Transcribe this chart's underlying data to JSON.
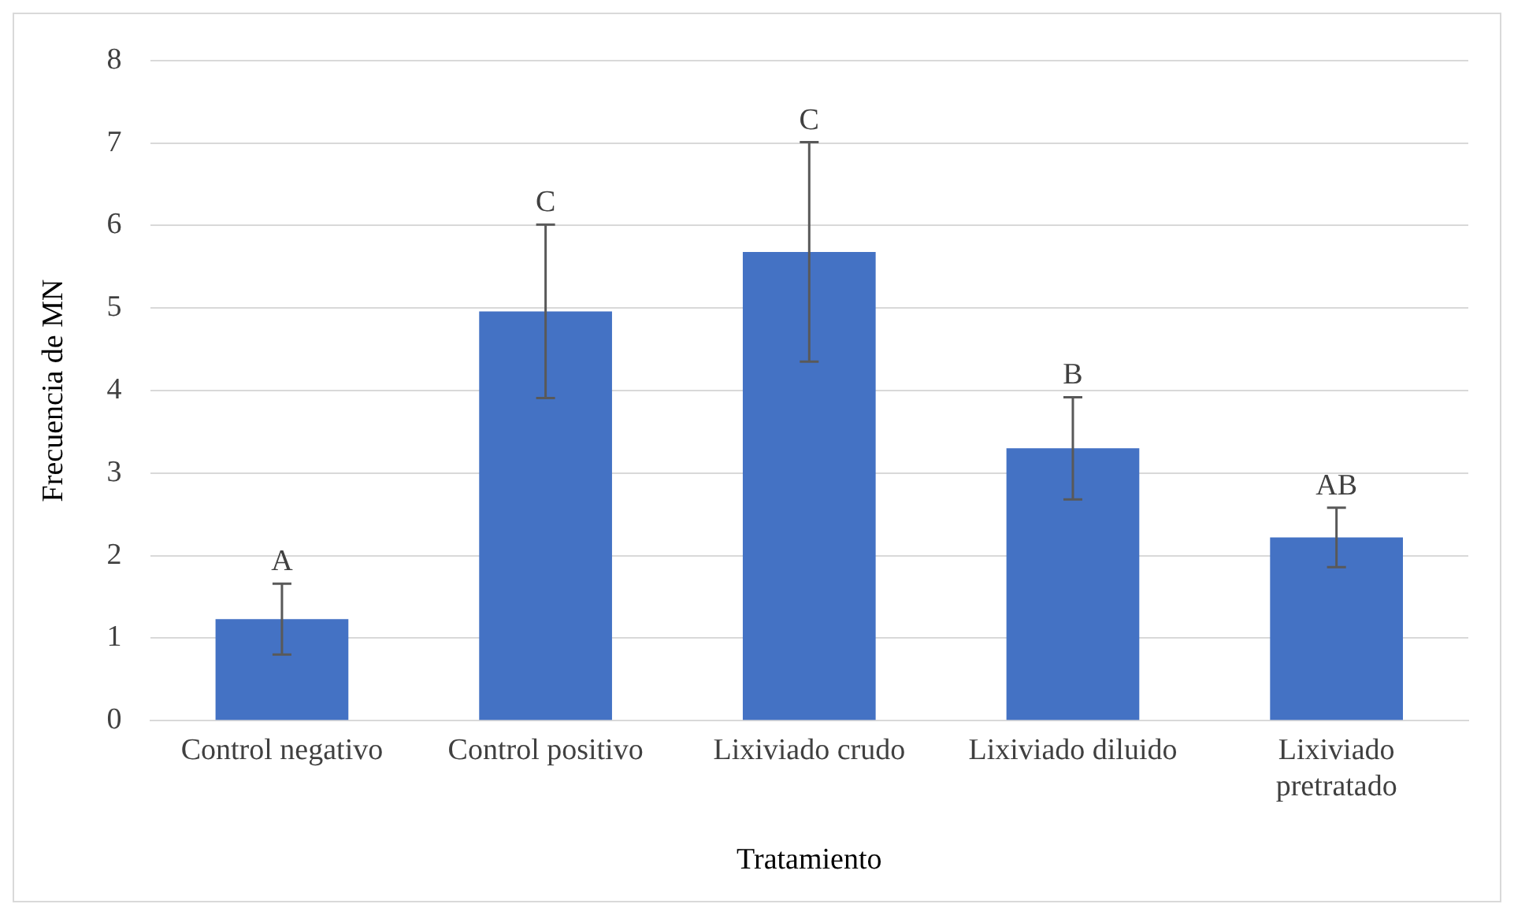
{
  "chart_data": {
    "type": "bar",
    "xlabel": "Tratamiento",
    "ylabel": "Frecuencia de MN",
    "categories": [
      "Control negativo",
      "Control positivo",
      "Lixiviado crudo",
      "Lixiviado diluido",
      "Lixiviado pretratado"
    ],
    "values": [
      1.23,
      4.96,
      5.68,
      3.3,
      2.22
    ],
    "errors": [
      0.43,
      1.05,
      1.33,
      0.62,
      0.36
    ],
    "color": "#4472c4",
    "ylim": [
      0,
      8
    ],
    "yticks": [
      0,
      1,
      2,
      3,
      4,
      5,
      6,
      7,
      8
    ],
    "grid": "y",
    "legend": false,
    "annotations": [
      {
        "text": "A",
        "x": "Control negativo",
        "y": 1.66
      },
      {
        "text": "C",
        "x": "Control positivo",
        "y": 6.01
      },
      {
        "text": "C",
        "x": "Lixiviado crudo",
        "y": 7.01
      },
      {
        "text": "B",
        "x": "Lixiviado diluido",
        "y": 3.92
      },
      {
        "text": "AB",
        "x": "Lixiviado pretratado",
        "y": 2.58
      }
    ]
  }
}
